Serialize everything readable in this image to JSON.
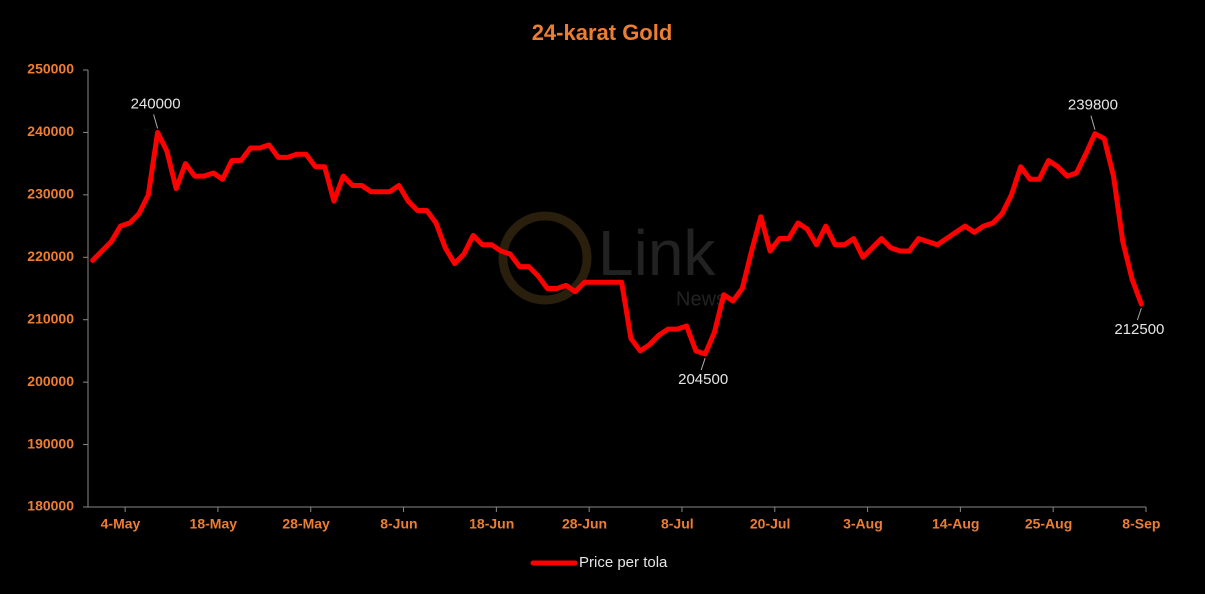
{
  "chart_data": {
    "type": "line",
    "title": "24-karat Gold",
    "categories": [
      null,
      null,
      null,
      "4-May",
      null,
      null,
      null,
      null,
      null,
      null,
      null,
      null,
      null,
      "18-May",
      null,
      null,
      null,
      null,
      null,
      null,
      null,
      null,
      null,
      "28-May",
      null,
      null,
      null,
      null,
      null,
      null,
      null,
      null,
      null,
      "8-Jun",
      null,
      null,
      null,
      null,
      null,
      null,
      null,
      null,
      null,
      "18-Jun",
      null,
      null,
      null,
      null,
      null,
      null,
      null,
      null,
      null,
      "28-Jun",
      null,
      null,
      null,
      null,
      null,
      null,
      null,
      null,
      null,
      "8-Jul",
      null,
      null,
      null,
      null,
      null,
      null,
      null,
      null,
      null,
      "20-Jul",
      null,
      null,
      null,
      null,
      null,
      null,
      null,
      null,
      null,
      "3-Aug",
      null,
      null,
      null,
      null,
      null,
      null,
      null,
      null,
      null,
      "14-Aug",
      null,
      null,
      null,
      null,
      null,
      null,
      null,
      null,
      null,
      "25-Aug",
      null,
      null,
      null,
      null,
      null,
      null,
      null,
      null,
      null,
      "8-Sep"
    ],
    "series": [
      {
        "name": "Price per tola",
        "color": "#ff0000",
        "values": [
          219500,
          221000,
          222500,
          225000,
          225500,
          227000,
          230000,
          240000,
          237000,
          231000,
          235000,
          233000,
          233000,
          233500,
          232500,
          235500,
          235500,
          237500,
          237500,
          238000,
          236000,
          236000,
          236500,
          236500,
          234500,
          234500,
          229000,
          233000,
          231500,
          231500,
          230500,
          230500,
          230500,
          231500,
          229000,
          227500,
          227500,
          225500,
          221500,
          219000,
          220500,
          223500,
          222000,
          222000,
          221000,
          220500,
          218500,
          218500,
          217000,
          215000,
          215000,
          215500,
          214500,
          216000,
          216000,
          216000,
          216000,
          216000,
          207000,
          205000,
          206000,
          207500,
          208500,
          208500,
          209000,
          205000,
          204500,
          208000,
          214000,
          213000,
          215000,
          221000,
          226500,
          221000,
          223000,
          223000,
          225500,
          224500,
          222000,
          225000,
          222000,
          222000,
          223000,
          220000,
          221500,
          223000,
          221500,
          221000,
          221000,
          223000,
          222500,
          222000,
          223000,
          224000,
          225000,
          224000,
          225000,
          225500,
          227000,
          230000,
          234500,
          232500,
          232500,
          235500,
          234500,
          233000,
          233500,
          236500,
          239800,
          239000,
          233000,
          222500,
          216500,
          212500
        ]
      }
    ],
    "data_labels": [
      {
        "index": 7,
        "position": "above"
      },
      {
        "index": 66,
        "position": "below"
      },
      {
        "index": 108,
        "position": "above"
      },
      {
        "index": 113,
        "position": "below"
      }
    ],
    "ylim": [
      180000,
      250000
    ],
    "yticks": [
      180000,
      190000,
      200000,
      210000,
      220000,
      230000,
      240000,
      250000
    ],
    "grid": false,
    "legend": "bottom",
    "watermark": {
      "brand": "Link",
      "sub": "News"
    }
  }
}
